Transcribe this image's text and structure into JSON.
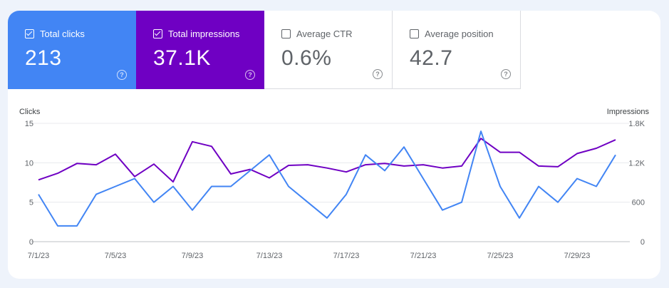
{
  "cards": [
    {
      "label": "Total clicks",
      "value": "213",
      "checked": true,
      "color": "#4285f4"
    },
    {
      "label": "Total impressions",
      "value": "37.1K",
      "checked": true,
      "color": "#6f00c3"
    },
    {
      "label": "Average CTR",
      "value": "0.6%",
      "checked": false,
      "color": "#ffffff"
    },
    {
      "label": "Average position",
      "value": "42.7",
      "checked": false,
      "color": "#ffffff"
    }
  ],
  "chart_data": {
    "type": "line",
    "xlabel": "",
    "ylabel": "Clicks",
    "y2label": "Impressions",
    "x": [
      "7/1/23",
      "7/2/23",
      "7/3/23",
      "7/4/23",
      "7/5/23",
      "7/6/23",
      "7/7/23",
      "7/8/23",
      "7/9/23",
      "7/10/23",
      "7/11/23",
      "7/12/23",
      "7/13/23",
      "7/14/23",
      "7/15/23",
      "7/16/23",
      "7/17/23",
      "7/18/23",
      "7/19/23",
      "7/20/23",
      "7/21/23",
      "7/22/23",
      "7/23/23",
      "7/24/23",
      "7/25/23",
      "7/26/23",
      "7/27/23",
      "7/28/23",
      "7/29/23",
      "7/30/23",
      "7/31/23"
    ],
    "x_ticks": [
      "7/1/23",
      "7/5/23",
      "7/9/23",
      "7/13/23",
      "7/17/23",
      "7/21/23",
      "7/25/23",
      "7/29/23"
    ],
    "y_ticks": [
      "0",
      "5",
      "10",
      "15"
    ],
    "y2_ticks": [
      "0",
      "600",
      "1.2K",
      "1.8K"
    ],
    "ylim": [
      0,
      15
    ],
    "y2lim": [
      0,
      1800
    ],
    "grid": true,
    "series": [
      {
        "name": "Total clicks",
        "axis": "left",
        "color": "#4285f4",
        "values": [
          6,
          2,
          2,
          6,
          7,
          8,
          5,
          7,
          4,
          7,
          7,
          9,
          11,
          7,
          5,
          3,
          6,
          11,
          9,
          12,
          8,
          4,
          5,
          14,
          7,
          3,
          7,
          5,
          8,
          7,
          11
        ]
      },
      {
        "name": "Total impressions",
        "axis": "right",
        "color": "#6f00c3",
        "values": [
          940,
          1040,
          1190,
          1170,
          1330,
          990,
          1180,
          910,
          1520,
          1450,
          1030,
          1100,
          970,
          1160,
          1170,
          1120,
          1060,
          1170,
          1190,
          1150,
          1170,
          1120,
          1150,
          1570,
          1360,
          1360,
          1150,
          1140,
          1340,
          1420,
          1550
        ]
      }
    ]
  }
}
